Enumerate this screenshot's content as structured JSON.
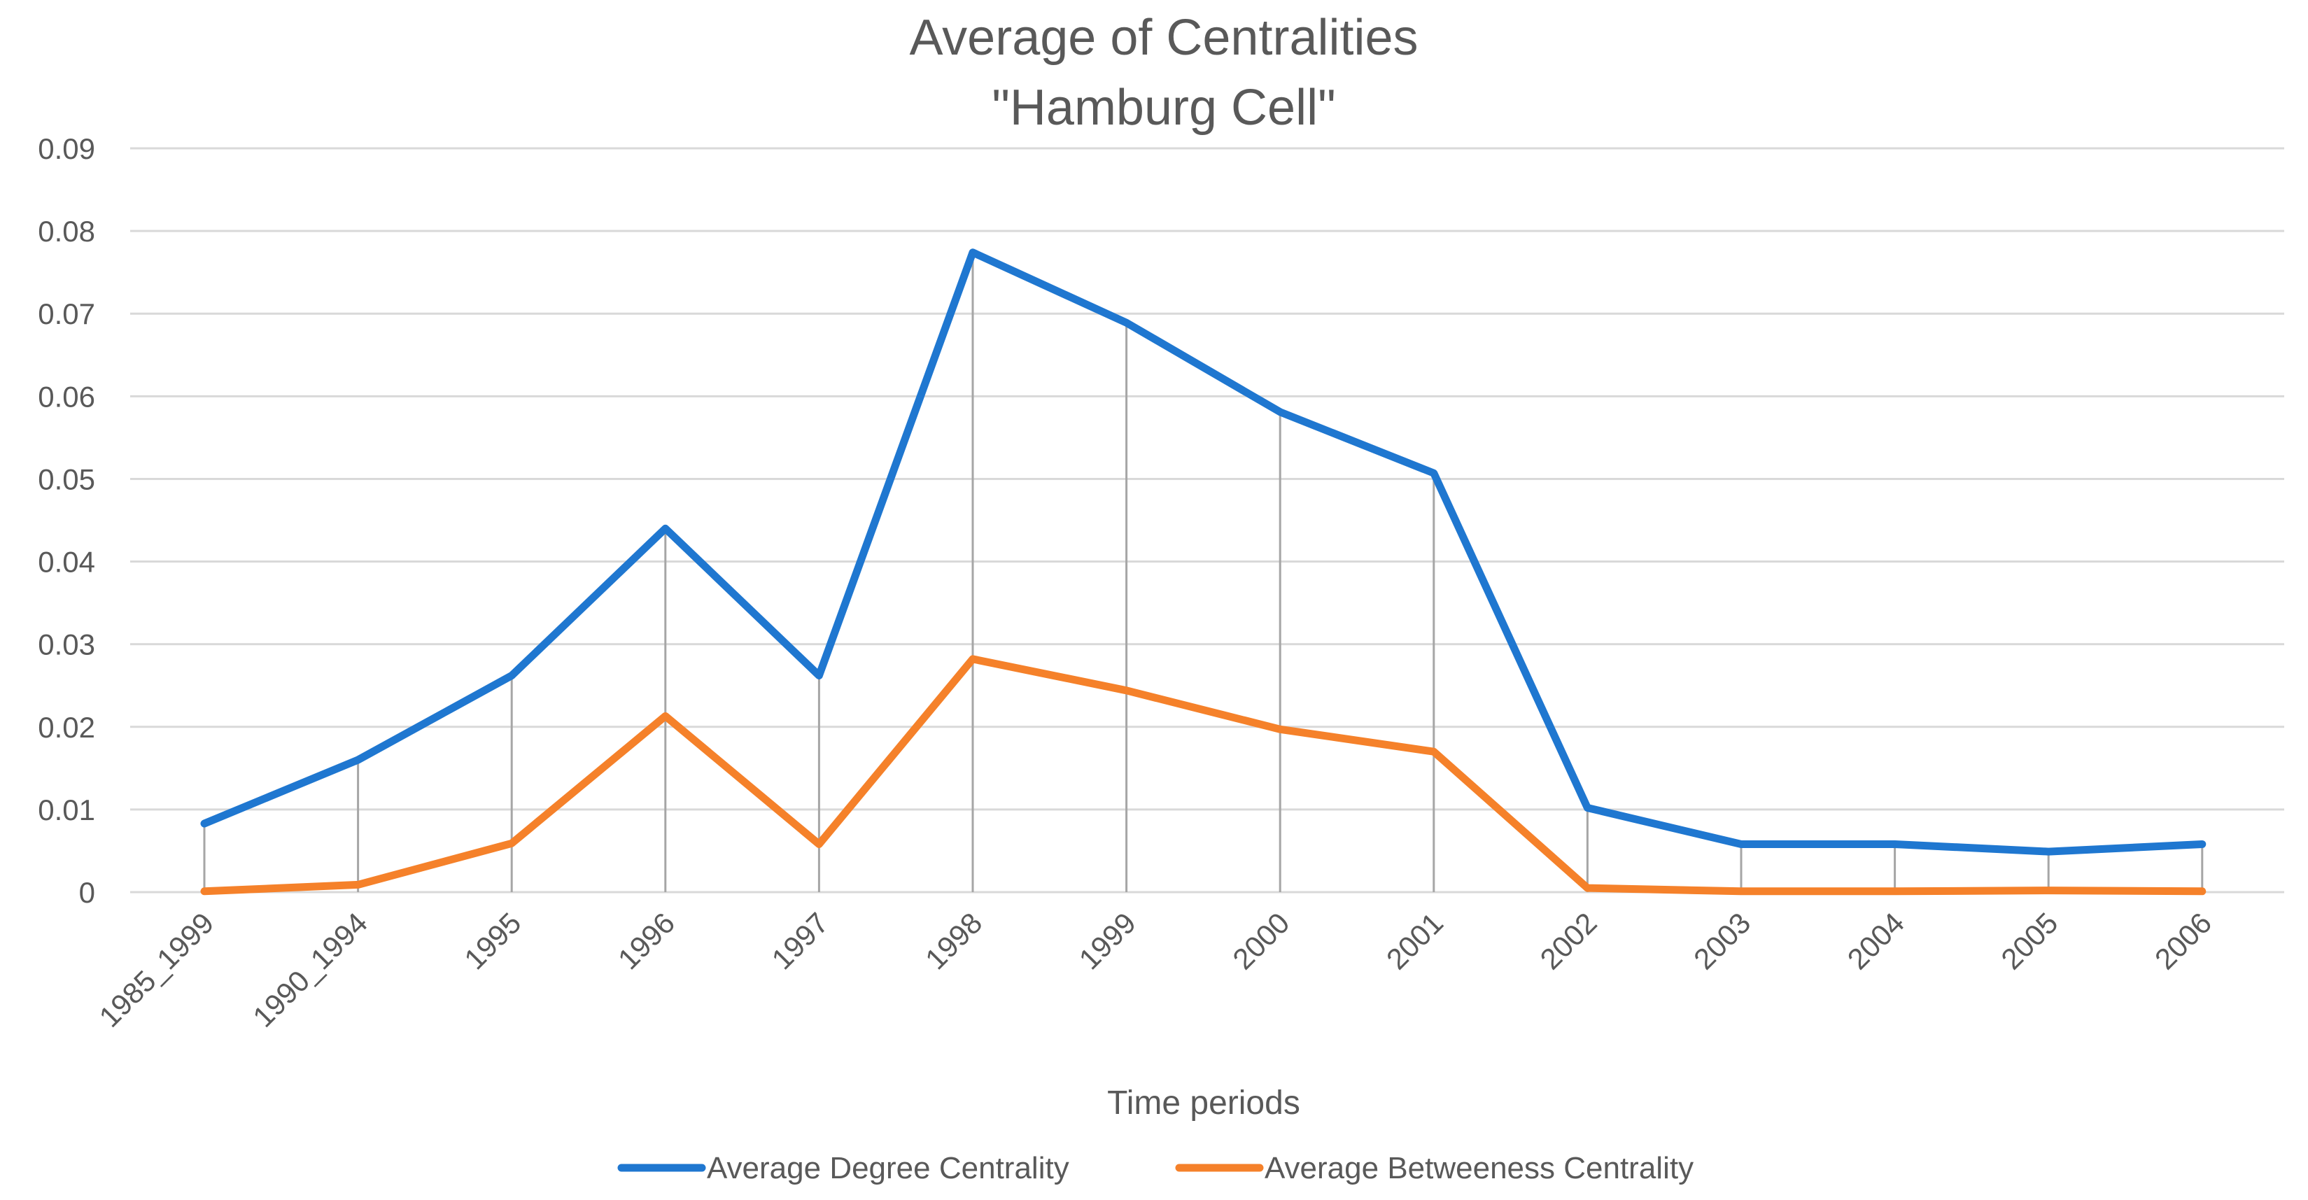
{
  "chart_data": {
    "type": "line",
    "title": "Average of Centralities",
    "subtitle": "\"Hamburg Cell\"",
    "xlabel": "Time periods",
    "ylabel": "",
    "categories": [
      "1985_1999",
      "1990_1994",
      "1995",
      "1996",
      "1997",
      "1998",
      "1999",
      "2000",
      "2001",
      "2002",
      "2003",
      "2004",
      "2005",
      "2006"
    ],
    "ylim": [
      0,
      0.09
    ],
    "yticks": [
      0,
      0.01,
      0.02,
      0.03,
      0.04,
      0.05,
      0.06,
      0.07,
      0.08,
      0.09
    ],
    "ytick_labels": [
      "0",
      "0.01",
      "0.02",
      "0.03",
      "0.04",
      "0.05",
      "0.06",
      "0.07",
      "0.08",
      "0.09"
    ],
    "grid": true,
    "drop_lines": true,
    "legend_position": "bottom",
    "series": [
      {
        "name": "Average Degree Centrality",
        "color": "#1f77d0",
        "values": [
          0.0083,
          0.016,
          0.0262,
          0.044,
          0.0262,
          0.0774,
          0.0689,
          0.0581,
          0.0507,
          0.0102,
          0.0058,
          0.0058,
          0.0049,
          0.0058
        ]
      },
      {
        "name": "Average Betweeness Centrality",
        "color": "#f5812a",
        "values": [
          0.0001,
          0.0009,
          0.0059,
          0.0213,
          0.0058,
          0.0282,
          0.0244,
          0.0197,
          0.017,
          0.0005,
          0.0001,
          0.0001,
          0.0002,
          0.0001
        ]
      }
    ]
  }
}
